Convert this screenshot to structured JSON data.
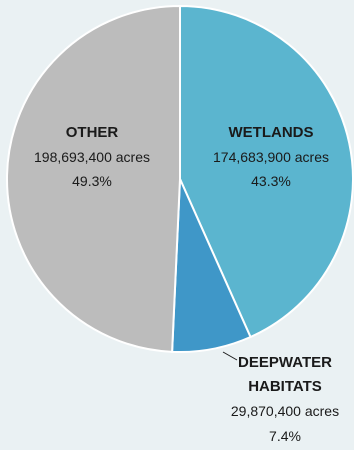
{
  "chart_data": {
    "type": "pie",
    "title": "",
    "units": "acres",
    "slices": [
      {
        "name": "WETLANDS",
        "value": 174683900,
        "value_label": "174,683,900 acres",
        "percent": 43.3,
        "percent_label": "43.3%",
        "color": "#5bb5cf"
      },
      {
        "name": "DEEPWATER HABITATS",
        "name_lines": [
          "DEEPWATER",
          "HABITATS"
        ],
        "value": 29870400,
        "value_label": "29,870,400 acres",
        "percent": 7.4,
        "percent_label": "7.4%",
        "color": "#3f97c8"
      },
      {
        "name": "OTHER",
        "value": 198693400,
        "value_label": "198,693,400 acres",
        "percent": 49.3,
        "percent_label": "49.3%",
        "color": "#bcbcbc"
      }
    ],
    "start_angle": "12 o'clock",
    "direction": "clockwise",
    "label_color": "#1a1a1a"
  }
}
